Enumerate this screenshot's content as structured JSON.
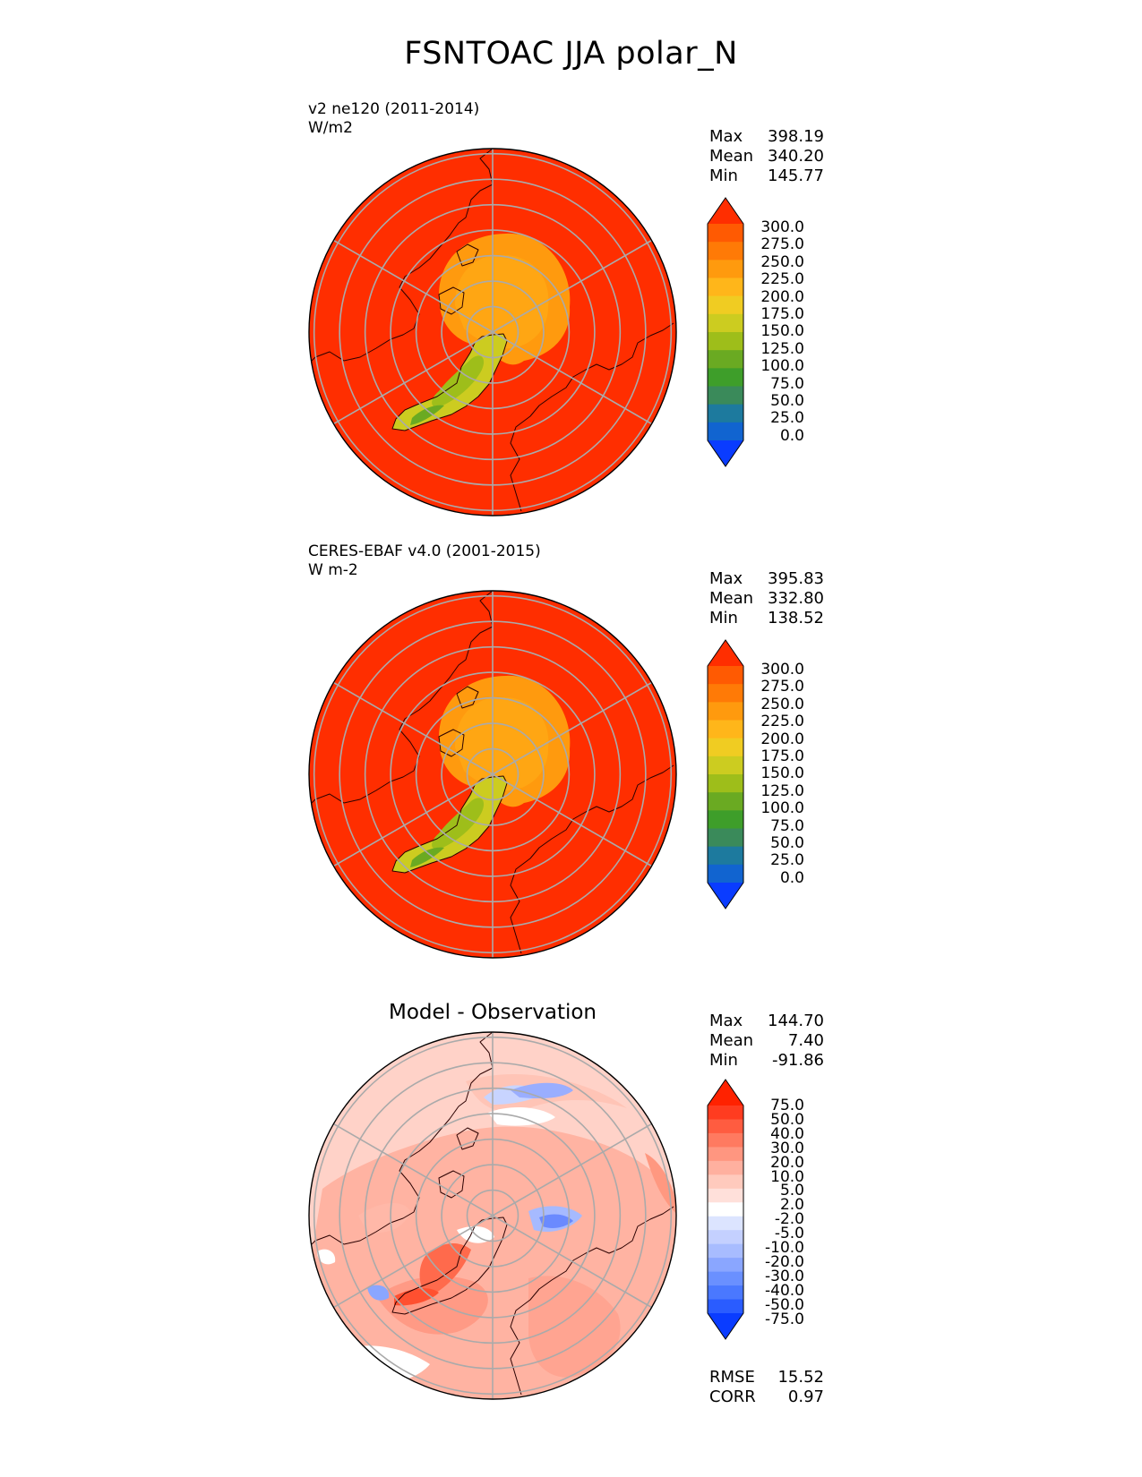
{
  "title": "FSNTOAC JJA polar_N",
  "colors": {
    "seq": [
      "#0a3cff",
      "#1164d0",
      "#1d7a9e",
      "#3a8a5a",
      "#3e9e2a",
      "#6aaa22",
      "#9ebe1a",
      "#cccc20",
      "#f0cc22",
      "#ffb61a",
      "#ff9a0e",
      "#ff7a06",
      "#ff5a02",
      "#ff2e00"
    ],
    "div": [
      "#0a3cff",
      "#2a5cff",
      "#4a78ff",
      "#6a90ff",
      "#8aa6ff",
      "#a8bcff",
      "#c4d0ff",
      "#dce4ff",
      "#ffffff",
      "#ffe0da",
      "#ffcabd",
      "#ffb09f",
      "#ff9680",
      "#ff7a60",
      "#ff5c40",
      "#ff3c20",
      "#ff2200"
    ],
    "map_high": "#ff2e00",
    "map_mid": "#ff9a0e",
    "map_mid2": "#ffb61a",
    "greenland_a": "#cccc20",
    "greenland_b": "#9ebe1a",
    "greenland_c": "#6aaa22"
  },
  "panels": [
    {
      "label_line1": "v2 ne120 (2011-2014)",
      "label_line2": "W/m2",
      "stats": {
        "max_label": "Max",
        "max": "398.19",
        "mean_label": "Mean",
        "mean": "340.20",
        "min_label": "Min",
        "min": "145.77"
      },
      "ticks": [
        "300.0",
        "275.0",
        "250.0",
        "225.0",
        "200.0",
        "175.0",
        "150.0",
        "125.0",
        "100.0",
        "75.0",
        "50.0",
        "25.0",
        "0.0"
      ]
    },
    {
      "label_line1": "CERES-EBAF v4.0 (2001-2015)",
      "label_line2": "W m-2",
      "stats": {
        "max_label": "Max",
        "max": "395.83",
        "mean_label": "Mean",
        "mean": "332.80",
        "min_label": "Min",
        "min": "138.52"
      },
      "ticks": [
        "300.0",
        "275.0",
        "250.0",
        "225.0",
        "200.0",
        "175.0",
        "150.0",
        "125.0",
        "100.0",
        "75.0",
        "50.0",
        "25.0",
        "0.0"
      ]
    },
    {
      "title": "Model - Observation",
      "stats": {
        "max_label": "Max",
        "max": "144.70",
        "mean_label": "Mean",
        "mean": "7.40",
        "min_label": "Min",
        "min": "-91.86"
      },
      "ticks": [
        "75.0",
        "50.0",
        "40.0",
        "30.0",
        "20.0",
        "10.0",
        "5.0",
        "2.0",
        "-2.0",
        "-5.0",
        "-10.0",
        "-20.0",
        "-30.0",
        "-40.0",
        "-50.0",
        "-75.0"
      ],
      "rmse_label": "RMSE",
      "rmse": "15.52",
      "corr_label": "CORR",
      "corr": "0.97"
    }
  ],
  "chart_data": [
    {
      "type": "heatmap",
      "title": "v2 ne120 (2011-2014)",
      "units": "W/m2",
      "projection": "north polar stereographic",
      "stats": {
        "max": 398.19,
        "mean": 340.2,
        "min": 145.77
      },
      "colorbar_levels": [
        0,
        25,
        50,
        75,
        100,
        125,
        150,
        175,
        200,
        225,
        250,
        275,
        300
      ],
      "extend": "both"
    },
    {
      "type": "heatmap",
      "title": "CERES-EBAF v4.0 (2001-2015)",
      "units": "W m-2",
      "projection": "north polar stereographic",
      "stats": {
        "max": 395.83,
        "mean": 332.8,
        "min": 138.52
      },
      "colorbar_levels": [
        0,
        25,
        50,
        75,
        100,
        125,
        150,
        175,
        200,
        225,
        250,
        275,
        300
      ],
      "extend": "both"
    },
    {
      "type": "heatmap",
      "title": "Model - Observation",
      "projection": "north polar stereographic",
      "stats": {
        "max": 144.7,
        "mean": 7.4,
        "min": -91.86,
        "rmse": 15.52,
        "corr": 0.97
      },
      "colorbar_levels": [
        -75,
        -50,
        -40,
        -30,
        -20,
        -10,
        -5,
        -2,
        2,
        5,
        10,
        20,
        30,
        40,
        50,
        75
      ],
      "extend": "both"
    }
  ]
}
